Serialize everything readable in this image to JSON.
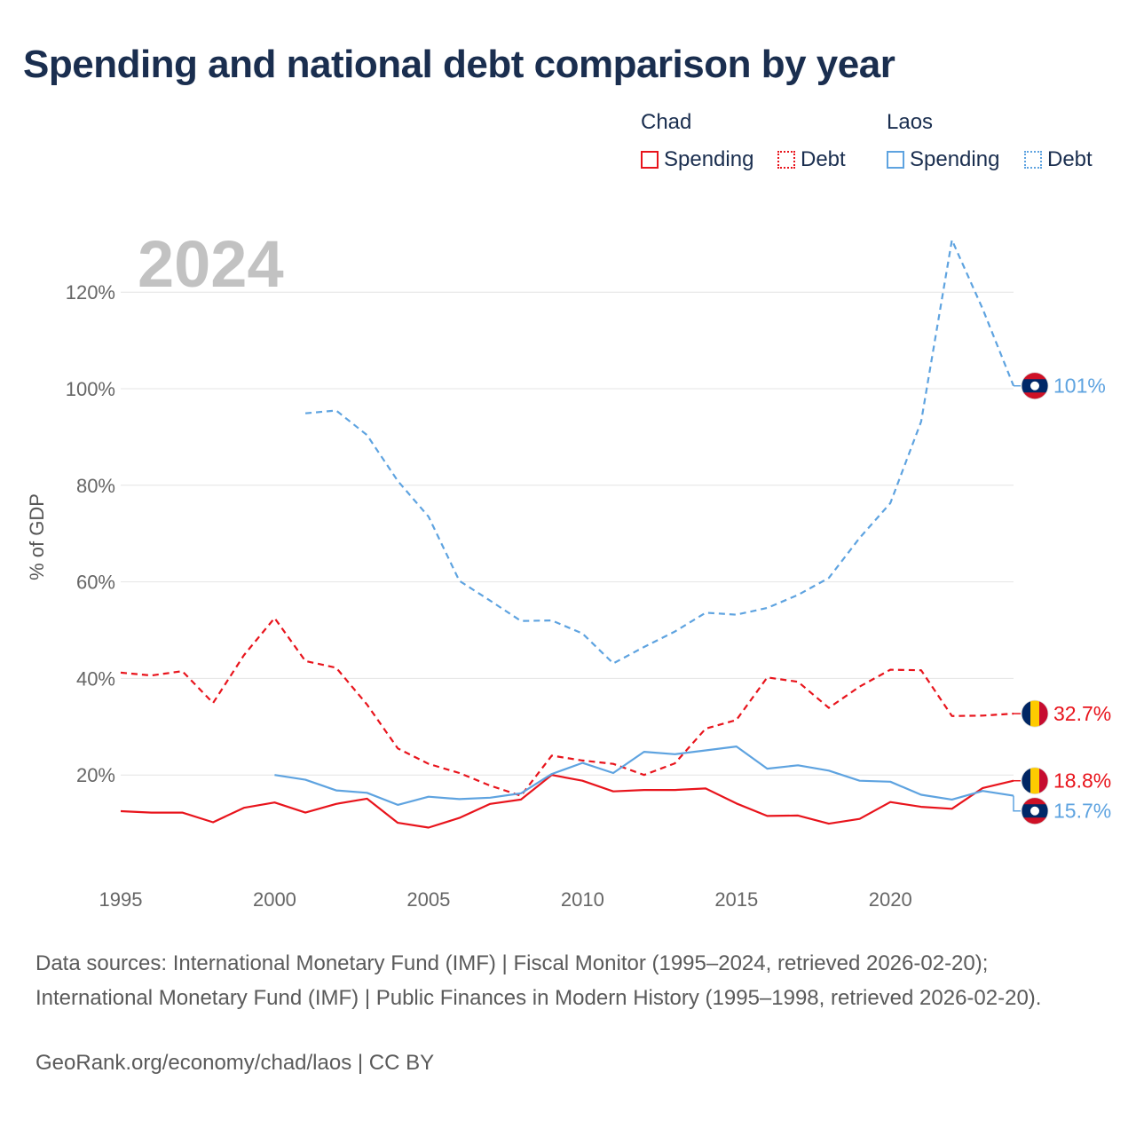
{
  "title": "Spending and national debt comparison by year",
  "year_watermark": "2024",
  "legend": {
    "groups": [
      {
        "country": "Chad",
        "color": "#e8141c",
        "items": [
          {
            "label": "Spending",
            "style": "solid"
          },
          {
            "label": "Debt",
            "style": "dotted"
          }
        ]
      },
      {
        "country": "Laos",
        "color": "#5ea3e0",
        "items": [
          {
            "label": "Spending",
            "style": "solid"
          },
          {
            "label": "Debt",
            "style": "dotted"
          }
        ]
      }
    ]
  },
  "chart_data": {
    "type": "line",
    "ylabel": "% of GDP",
    "xlabel": "",
    "xlim": [
      1995,
      2024
    ],
    "ylim": [
      0,
      130
    ],
    "x_ticks": [
      1995,
      2000,
      2005,
      2010,
      2015,
      2020
    ],
    "y_ticks": [
      20,
      40,
      60,
      80,
      100,
      120
    ],
    "y_tick_labels": [
      "20%",
      "40%",
      "60%",
      "80%",
      "100%",
      "120%"
    ],
    "grid": true,
    "series": [
      {
        "name": "Chad Spending",
        "country": "Chad",
        "metric": "Spending",
        "color": "#e8141c",
        "dash": "solid",
        "end_label": "18.8%",
        "flag": "chad",
        "x": [
          1995,
          1996,
          1997,
          1998,
          1999,
          2000,
          2001,
          2002,
          2003,
          2004,
          2005,
          2006,
          2007,
          2008,
          2009,
          2010,
          2011,
          2012,
          2013,
          2014,
          2015,
          2016,
          2017,
          2018,
          2019,
          2020,
          2021,
          2022,
          2023,
          2024
        ],
        "y": [
          12.5,
          12.2,
          12.2,
          10.2,
          13.2,
          14.3,
          12.2,
          14.0,
          15.1,
          10.1,
          9.1,
          11.1,
          14.0,
          14.9,
          20.0,
          18.8,
          16.6,
          16.9,
          16.9,
          17.2,
          14.1,
          11.5,
          11.6,
          9.9,
          10.9,
          14.4,
          13.4,
          13.0,
          17.3,
          18.8
        ]
      },
      {
        "name": "Chad Debt",
        "country": "Chad",
        "metric": "Debt",
        "color": "#e8141c",
        "dash": "dashed",
        "end_label": "32.7%",
        "flag": "chad",
        "x": [
          1995,
          1996,
          1997,
          1998,
          1999,
          2000,
          2001,
          2002,
          2003,
          2004,
          2005,
          2006,
          2007,
          2008,
          2009,
          2010,
          2011,
          2012,
          2013,
          2014,
          2015,
          2016,
          2017,
          2018,
          2019,
          2020,
          2021,
          2022,
          2023,
          2024
        ],
        "y": [
          41.2,
          40.6,
          41.5,
          34.9,
          44.8,
          52.5,
          43.6,
          42.2,
          34.6,
          25.5,
          22.3,
          20.4,
          17.8,
          15.7,
          24.0,
          23.0,
          22.3,
          20.0,
          22.4,
          29.6,
          31.4,
          40.2,
          39.3,
          33.9,
          38.3,
          41.8,
          41.7,
          32.2,
          32.3,
          32.7
        ]
      },
      {
        "name": "Laos Spending",
        "country": "Laos",
        "metric": "Spending",
        "color": "#5ea3e0",
        "dash": "solid",
        "end_label": "15.7%",
        "flag": "laos",
        "x": [
          2000,
          2001,
          2002,
          2003,
          2004,
          2005,
          2006,
          2007,
          2008,
          2009,
          2010,
          2011,
          2012,
          2013,
          2014,
          2015,
          2016,
          2017,
          2018,
          2019,
          2020,
          2021,
          2022,
          2023,
          2024
        ],
        "y": [
          20.0,
          19.0,
          16.8,
          16.3,
          13.8,
          15.5,
          15.0,
          15.3,
          16.2,
          20.2,
          22.5,
          20.4,
          24.8,
          24.3,
          25.1,
          25.9,
          21.3,
          22.0,
          20.9,
          18.8,
          18.6,
          15.9,
          14.9,
          16.7,
          15.7
        ]
      },
      {
        "name": "Laos Debt",
        "country": "Laos",
        "metric": "Debt",
        "color": "#5ea3e0",
        "dash": "dashed",
        "end_label": "101%",
        "flag": "laos",
        "x": [
          2001,
          2002,
          2003,
          2004,
          2005,
          2006,
          2007,
          2008,
          2009,
          2010,
          2011,
          2012,
          2013,
          2014,
          2015,
          2016,
          2017,
          2018,
          2019,
          2020,
          2021,
          2022,
          2023,
          2024
        ],
        "y": [
          94.9,
          95.5,
          90.4,
          80.9,
          73.5,
          60.2,
          56.1,
          51.9,
          52.0,
          49.3,
          43.1,
          46.5,
          49.7,
          53.6,
          53.2,
          54.6,
          57.3,
          60.8,
          69.1,
          76.3,
          93.2,
          130.8,
          116.5,
          100.6
        ]
      }
    ]
  },
  "footer": {
    "sources": "Data sources: International Monetary Fund (IMF) | Fiscal Monitor (1995–2024, retrieved 2026-02-20); International Monetary Fund (IMF) | Public Finances in Modern History (1995–1998, retrieved 2026-02-20).",
    "credit": "GeoRank.org/economy/chad/laos | CC BY"
  }
}
